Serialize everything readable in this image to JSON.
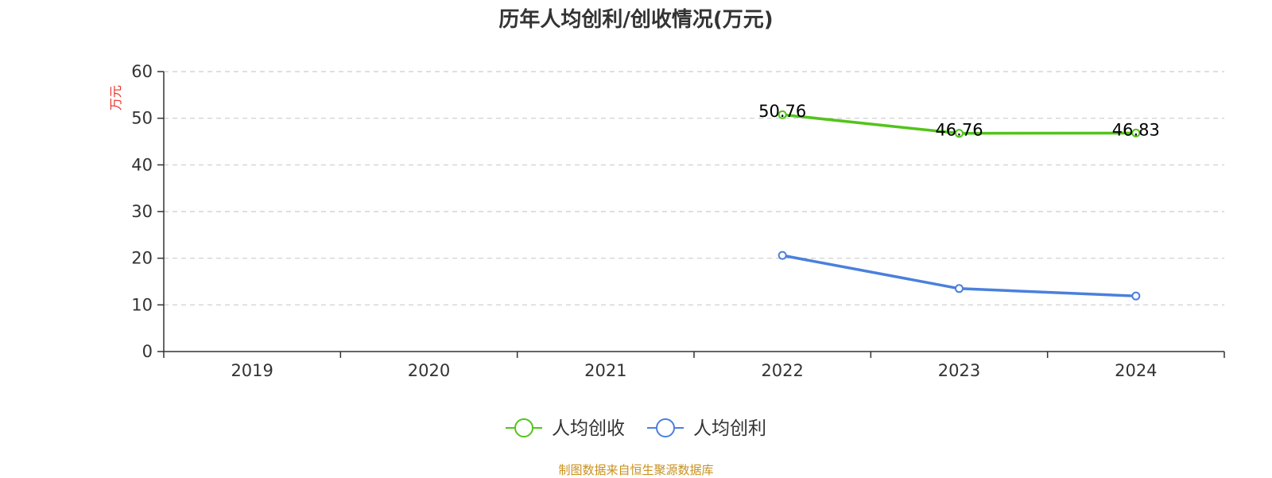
{
  "chart_data": {
    "type": "line",
    "title": "历年人均创利/创收情况(万元)",
    "ylabel": "万元",
    "xlabel": "",
    "categories": [
      "2019",
      "2020",
      "2021",
      "2022",
      "2023",
      "2024"
    ],
    "ylim": [
      0,
      60
    ],
    "yticks": [
      0,
      10,
      20,
      30,
      40,
      50,
      60
    ],
    "grid": true,
    "legend_position": "bottom",
    "series": [
      {
        "name": "人均创收",
        "color": "#52c41a",
        "values": [
          null,
          null,
          null,
          50.76,
          46.76,
          46.83
        ],
        "labels": [
          null,
          null,
          null,
          "50.76",
          "46.76",
          "46.83"
        ]
      },
      {
        "name": "人均创利",
        "color": "#4a80dc",
        "values": [
          null,
          null,
          null,
          20.6,
          13.5,
          11.9
        ],
        "labels": [
          null,
          null,
          null,
          null,
          null,
          null
        ]
      }
    ],
    "ylabel_color": "#e8332a"
  },
  "source": "制图数据来自恒生聚源数据库"
}
